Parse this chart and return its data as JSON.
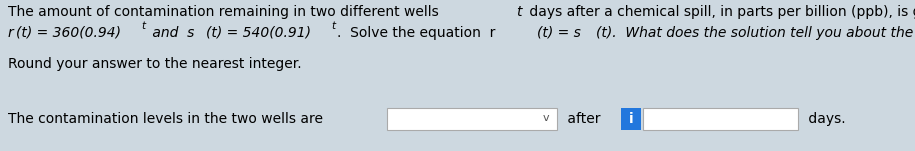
{
  "bg_color": "#cdd8e0",
  "text_line1a": "The amount of contamination remaining in two different wells ",
  "text_line1_t": "t",
  "text_line1b": " days after a chemical spill, in parts per billion (ppb), is given by",
  "text_line2_r": "r",
  "text_line2_rt": "(t) = 360(0.94)",
  "text_line2_exp1": "t",
  "text_line2_and": " and  s",
  "text_line2_st": "(t) = 540(0.91)",
  "text_line2_exp2": "t",
  "text_line2_solve": ".  Solve the equation  r",
  "text_line2_req": "(t) = s",
  "text_line2_seq": "(t).  What does the solution tell you about the wells?",
  "text_line3": "Round your answer to the nearest integer.",
  "text_line4a": "The contamination levels in the two wells are",
  "text_after": "after",
  "text_days": "days.",
  "dropdown_color": "#ffffff",
  "dropdown_border": "#aaaaaa",
  "info_box_color": "#2277dd",
  "answer_box_color": "#ffffff",
  "answer_box_border": "#aaaaaa",
  "font_size": 10.0,
  "font_size_sup": 7.5
}
